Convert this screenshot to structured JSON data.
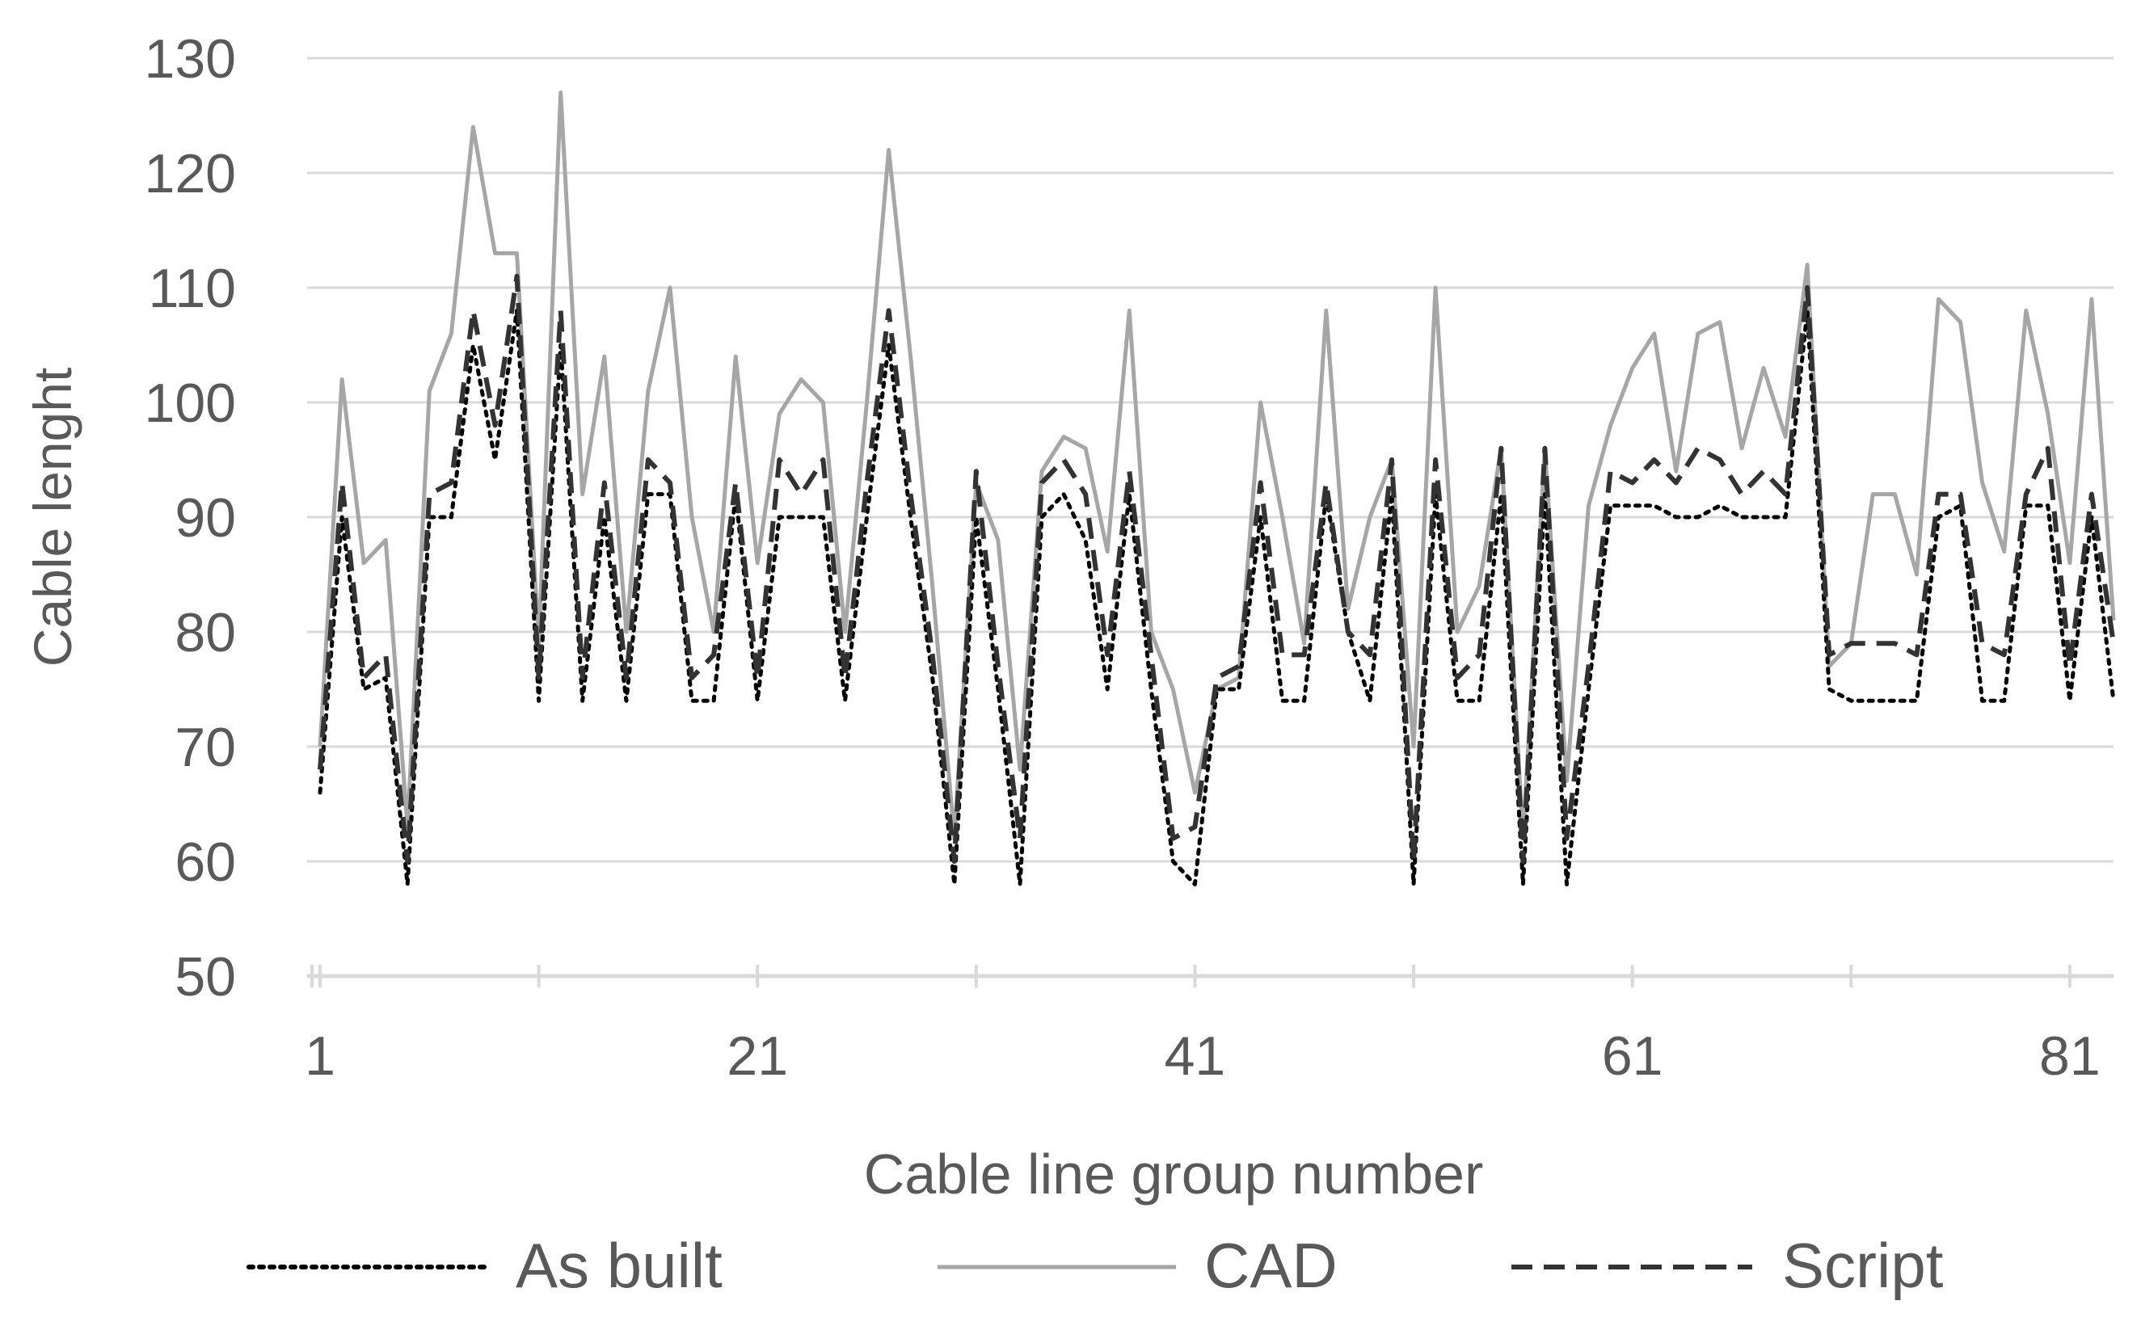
{
  "chart_data": {
    "type": "line",
    "title": "",
    "xlabel": "Cable line group number",
    "ylabel": "Cable lenght",
    "ylim": [
      50,
      130
    ],
    "yticks": [
      50,
      60,
      70,
      80,
      90,
      100,
      110,
      120,
      130
    ],
    "xticks": [
      1,
      21,
      41,
      61,
      81
    ],
    "xlim": [
      1,
      83
    ],
    "grid": "horizontal",
    "legend_position": "bottom",
    "x": [
      1,
      2,
      3,
      4,
      5,
      6,
      7,
      8,
      9,
      10,
      11,
      12,
      13,
      14,
      15,
      16,
      17,
      18,
      19,
      20,
      21,
      22,
      23,
      24,
      25,
      26,
      27,
      28,
      29,
      30,
      31,
      32,
      33,
      34,
      35,
      36,
      37,
      38,
      39,
      40,
      41,
      42,
      43,
      44,
      45,
      46,
      47,
      48,
      49,
      50,
      51,
      52,
      53,
      54,
      55,
      56,
      57,
      58,
      59,
      60,
      61,
      62,
      63,
      64,
      65,
      66,
      67,
      68,
      69,
      70,
      71,
      72,
      73,
      74,
      75,
      76,
      77,
      78,
      79,
      80,
      81,
      82,
      83
    ],
    "series": [
      {
        "name": "As built",
        "style": "dotted",
        "color": "#000000",
        "values": [
          66,
          90,
          75,
          76,
          58,
          90,
          90,
          105,
          95,
          108,
          74,
          105,
          74,
          90,
          74,
          92,
          92,
          74,
          74,
          92,
          74,
          90,
          90,
          90,
          74,
          90,
          105,
          90,
          76,
          58,
          90,
          75,
          58,
          90,
          92,
          88,
          75,
          92,
          75,
          60,
          58,
          75,
          75,
          90,
          74,
          74,
          92,
          80,
          74,
          92,
          58,
          92,
          74,
          74,
          92,
          58,
          92,
          58,
          75,
          91,
          91,
          91,
          90,
          90,
          91,
          90,
          90,
          90,
          108,
          75,
          74,
          74,
          74,
          74,
          90,
          91,
          74,
          74,
          91,
          91,
          74,
          90,
          74
        ]
      },
      {
        "name": "CAD",
        "style": "solid",
        "color": "#a6a6a6",
        "values": [
          70,
          102,
          86,
          88,
          63,
          101,
          106,
          124,
          113,
          113,
          79,
          127,
          92,
          104,
          80,
          101,
          110,
          90,
          80,
          104,
          86,
          99,
          102,
          100,
          80,
          100,
          122,
          104,
          84,
          62,
          93,
          88,
          68,
          94,
          97,
          96,
          87,
          108,
          80,
          75,
          66,
          75,
          76,
          100,
          90,
          79,
          108,
          82,
          90,
          95,
          70,
          110,
          80,
          84,
          96,
          62,
          96,
          67,
          91,
          98,
          103,
          106,
          94,
          106,
          107,
          96,
          103,
          97,
          112,
          77,
          79,
          92,
          92,
          85,
          109,
          107,
          93,
          87,
          108,
          99,
          86,
          109,
          81
        ]
      },
      {
        "name": "Script",
        "style": "dashed",
        "color": "#333333",
        "values": [
          68,
          93,
          76,
          78,
          60,
          92,
          93,
          108,
          98,
          111,
          76,
          108,
          76,
          93,
          76,
          95,
          93,
          76,
          78,
          93,
          76,
          95,
          92,
          95,
          76,
          93,
          108,
          92,
          78,
          60,
          94,
          77,
          62,
          93,
          95,
          92,
          78,
          94,
          78,
          62,
          63,
          76,
          77,
          93,
          78,
          78,
          93,
          80,
          78,
          95,
          60,
          95,
          76,
          78,
          96,
          60,
          96,
          62,
          77,
          94,
          93,
          95,
          93,
          96,
          95,
          92,
          94,
          92,
          110,
          78,
          79,
          79,
          79,
          78,
          92,
          92,
          79,
          78,
          92,
          96,
          77,
          92,
          79
        ]
      }
    ]
  }
}
